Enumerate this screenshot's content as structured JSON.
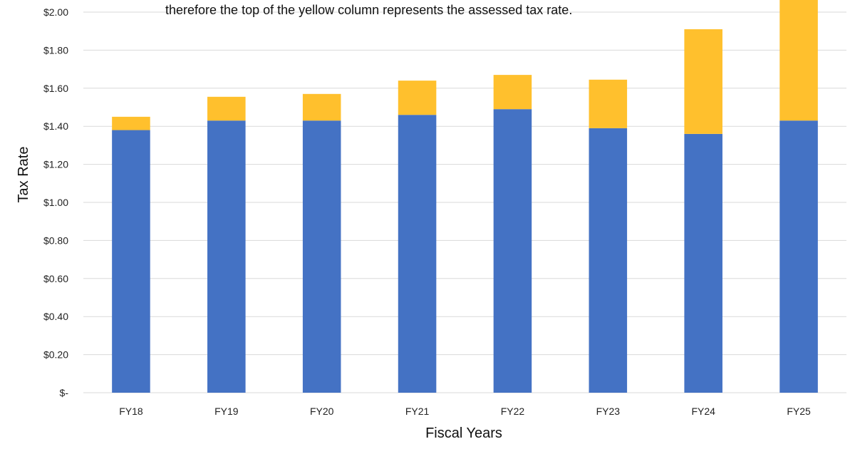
{
  "chart_data": {
    "type": "bar",
    "stacked": true,
    "annotation": "therefore the top of the yellow column represents the assessed tax rate.",
    "xlabel": "Fiscal Years",
    "ylabel": "Tax Rate",
    "ylim": [
      0,
      2.0
    ],
    "y_ticks": [
      {
        "value": 0,
        "label": "$-"
      },
      {
        "value": 0.2,
        "label": "$0.20"
      },
      {
        "value": 0.4,
        "label": "$0.40"
      },
      {
        "value": 0.6,
        "label": "$0.60"
      },
      {
        "value": 0.8,
        "label": "$0.80"
      },
      {
        "value": 1.0,
        "label": "$1.00"
      },
      {
        "value": 1.2,
        "label": "$1.20"
      },
      {
        "value": 1.4,
        "label": "$1.40"
      },
      {
        "value": 1.6,
        "label": "$1.60"
      },
      {
        "value": 1.8,
        "label": "$1.80"
      },
      {
        "value": 2.0,
        "label": "$2.00"
      }
    ],
    "grid": true,
    "legend": "none",
    "categories": [
      "FY18",
      "FY19",
      "FY20",
      "FY21",
      "FY22",
      "FY23",
      "FY24",
      "FY25"
    ],
    "series": [
      {
        "color": "#4472c4",
        "values": [
          1.38,
          1.43,
          1.43,
          1.46,
          1.49,
          1.39,
          1.36,
          1.43
        ]
      },
      {
        "color": "#ffc02d",
        "values": [
          0.07,
          0.125,
          0.14,
          0.18,
          0.18,
          0.255,
          0.55,
          0.66
        ]
      }
    ]
  }
}
